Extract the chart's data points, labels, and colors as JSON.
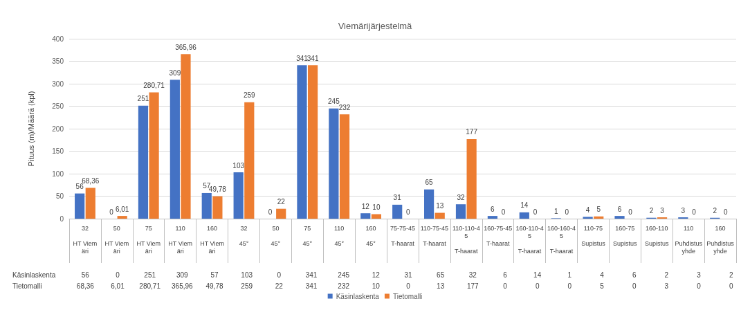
{
  "chart_data": {
    "type": "bar",
    "title": "Viemärijärjestelmä",
    "ylabel": "Pituus (m)/Määrä (kpl)",
    "categories": [
      "32\nHT Viemäri",
      "50\nHT Viemäri",
      "75\nHT Viemäri",
      "110\nHT Viemäri",
      "160\nHT Viemäri",
      "32\n45°",
      "50\n45°",
      "75\n45°",
      "110\n45°",
      "160\n45°",
      "75-75-45\nT-haarat",
      "110-75-45\nT-haarat",
      "110-110-45\nT-haarat",
      "160-75-45\nT-haarat",
      "160-110-45\nT-haarat",
      "160-160-45\nT-haarat",
      "110-75\nSupistus",
      "160-75\nSupistus",
      "160-110\nSupistus",
      "110\nPuhdistusyhde",
      "160\nPuhdistusyhde"
    ],
    "series": [
      {
        "name": "Käsinlaskenta",
        "color": "#4472c4",
        "values": [
          56,
          0,
          251,
          309,
          57,
          103,
          0,
          341,
          245,
          12,
          31,
          65,
          32,
          6,
          14,
          1,
          4,
          6,
          2,
          3,
          2
        ],
        "value_labels": [
          "56",
          "0",
          "251",
          "309",
          "57",
          "103",
          "0",
          "341",
          "245",
          "12",
          "31",
          "65",
          "32",
          "6",
          "14",
          "1",
          "4",
          "6",
          "2",
          "3",
          "2"
        ]
      },
      {
        "name": "Tietomalli",
        "color": "#ed7d31",
        "values": [
          68.36,
          6.01,
          280.71,
          365.96,
          49.78,
          259,
          22,
          341,
          232,
          10,
          0,
          13,
          177,
          0,
          0,
          0,
          5,
          0,
          3,
          0,
          0
        ],
        "value_labels": [
          "68,36",
          "6,01",
          "280,71",
          "365,96",
          "49,78",
          "259",
          "22",
          "341",
          "232",
          "10",
          "0",
          "13",
          "177",
          "0",
          "0",
          "0",
          "5",
          "0",
          "3",
          "0",
          "0"
        ]
      }
    ],
    "ylim": [
      0,
      400
    ],
    "yticks": [
      0,
      50,
      100,
      150,
      200,
      250,
      300,
      350,
      400
    ],
    "grid": "y",
    "legend": "bottom"
  }
}
